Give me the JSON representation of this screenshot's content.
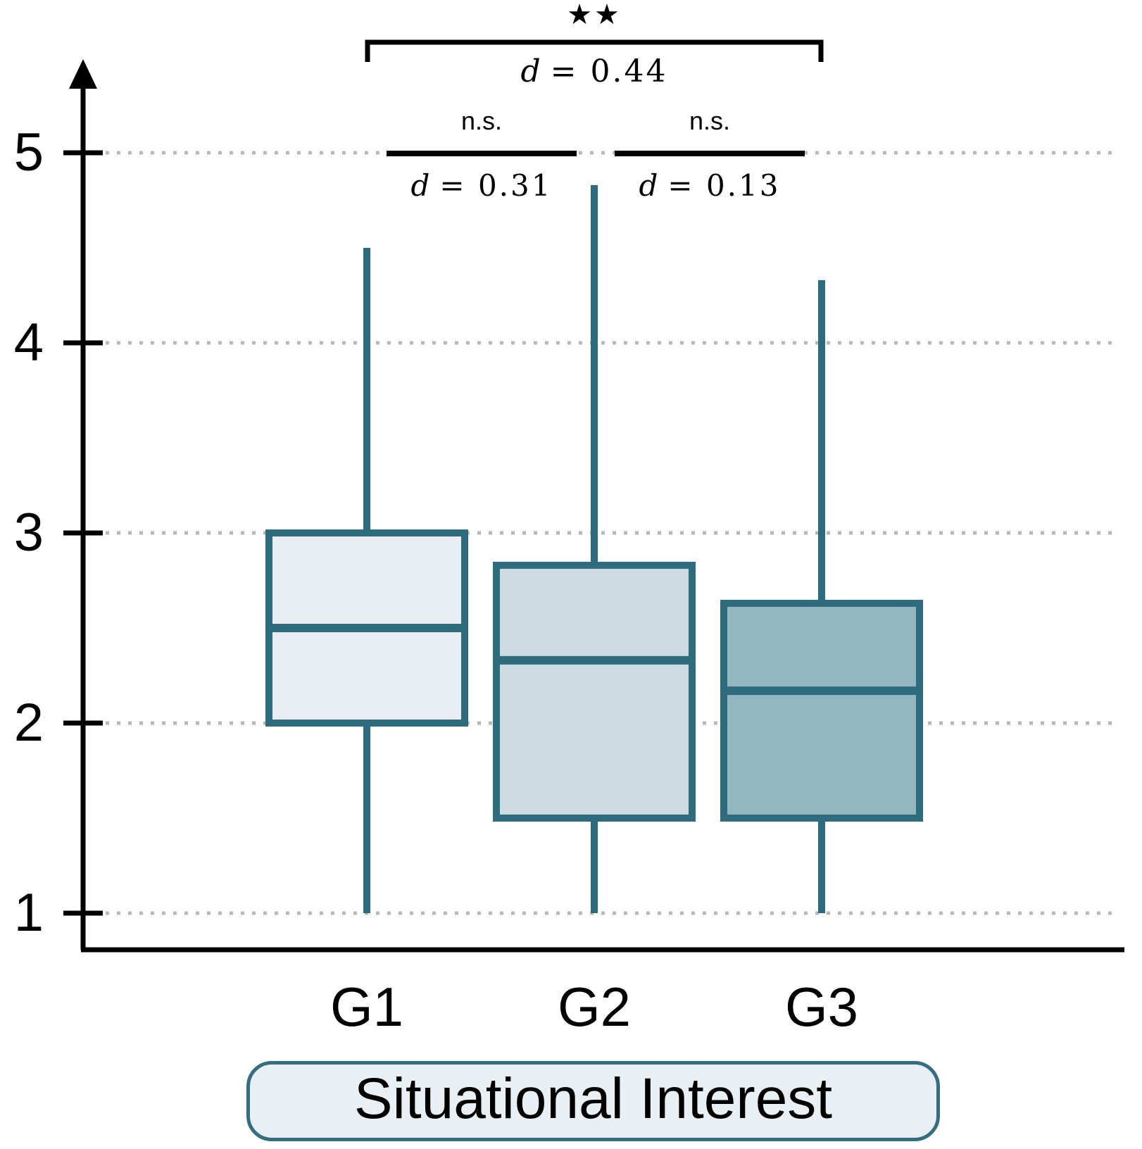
{
  "chart_data": {
    "type": "box",
    "title": "",
    "xlabel": "Situational Interest",
    "ylabel": "",
    "ylim": [
      1,
      5
    ],
    "yticks": [
      1,
      2,
      3,
      4,
      5
    ],
    "grid": true,
    "categories": [
      "G1",
      "G2",
      "G3"
    ],
    "series": [
      {
        "name": "G1",
        "min": 1.0,
        "q1": 2.0,
        "median": 2.5,
        "q3": 3.0,
        "max": 4.5,
        "fill": "#e8eef1"
      },
      {
        "name": "G2",
        "min": 1.0,
        "q1": 1.5,
        "median": 2.33,
        "q3": 2.83,
        "max": 4.83,
        "fill": "#ccdbe1"
      },
      {
        "name": "G3",
        "min": 1.0,
        "q1": 1.5,
        "median": 2.17,
        "q3": 2.63,
        "max": 4.33,
        "fill": "#93b6c0"
      }
    ],
    "annotations": [
      {
        "pair": "G1-G3",
        "label": "★★",
        "effect_var": "d",
        "effect_value": "= 0.44"
      },
      {
        "pair": "G1-G2",
        "label": "n.s.",
        "effect_var": "d",
        "effect_value": "= 0.31"
      },
      {
        "pair": "G2-G3",
        "label": "n.s.",
        "effect_var": "d",
        "effect_value": "= 0.13"
      }
    ]
  },
  "colors": {
    "box_stroke": "#2e6b7c",
    "whisker": "#2e6b7c",
    "grid": "#b9b9b9",
    "axis": "#000000",
    "sig_line": "#000000",
    "xlabel_box_fill": "#e9eff2",
    "xlabel_box_border": "#346e80"
  }
}
